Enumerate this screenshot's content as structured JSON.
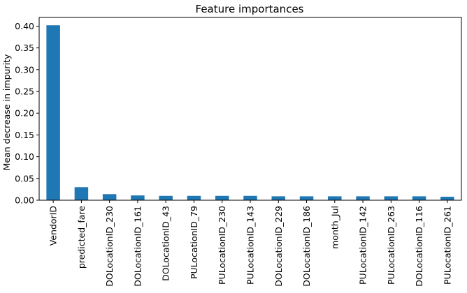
{
  "chart_data": {
    "type": "bar",
    "title": "Feature importances",
    "xlabel": "",
    "ylabel": "Mean decrease in impurity",
    "ylim": [
      0,
      0.42
    ],
    "yticks": [
      "0.00",
      "0.05",
      "0.10",
      "0.15",
      "0.20",
      "0.25",
      "0.30",
      "0.35",
      "0.40"
    ],
    "categories": [
      "VendorID",
      "predicted_fare",
      "DOLocationID_230",
      "DOLocationID_161",
      "DOLocationID_43",
      "PULocationID_79",
      "PULocationID_230",
      "PULocationID_143",
      "DOLocationID_229",
      "DOLocationID_186",
      "month_Jul",
      "PULocationID_142",
      "PULocationID_263",
      "DOLocationID_116",
      "PULocationID_261"
    ],
    "values": [
      0.402,
      0.03,
      0.014,
      0.011,
      0.01,
      0.01,
      0.01,
      0.01,
      0.009,
      0.009,
      0.009,
      0.009,
      0.009,
      0.009,
      0.008
    ],
    "grid": false,
    "legend": "none",
    "bar_color": "#1f77b4",
    "bar_edge_color": "#0d6ab8"
  }
}
